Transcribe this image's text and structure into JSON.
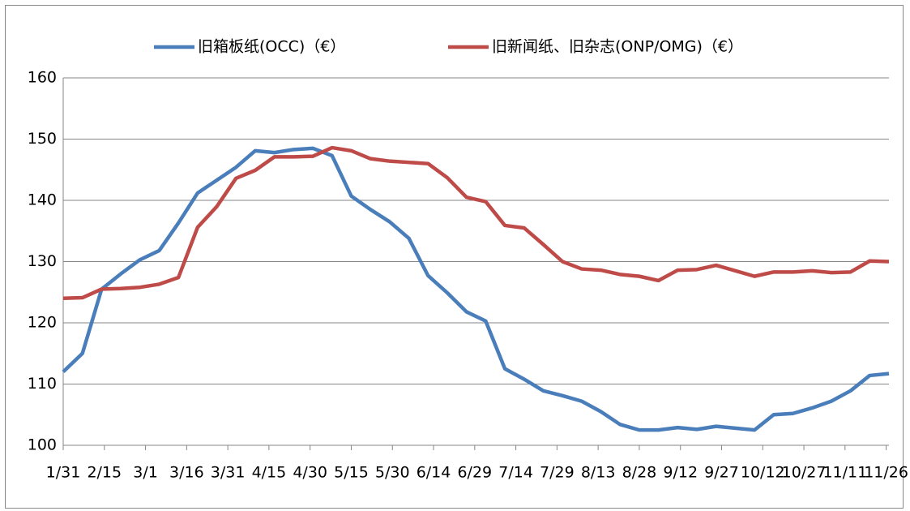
{
  "chart_data": {
    "type": "line",
    "x": [
      0,
      7,
      14,
      21,
      28,
      35,
      42,
      49,
      56,
      63,
      70,
      77,
      84,
      91,
      98,
      105,
      112,
      119,
      126,
      133,
      140,
      147,
      154,
      161,
      168,
      175,
      182,
      189,
      196,
      203,
      210,
      217,
      224,
      231,
      238,
      245,
      252,
      259,
      266,
      273,
      280,
      287,
      294,
      301
    ],
    "xlim": [
      0,
      301
    ],
    "xticks": [
      {
        "value": 0,
        "label": "1/31"
      },
      {
        "value": 15,
        "label": "2/15"
      },
      {
        "value": 30,
        "label": "3/1"
      },
      {
        "value": 45,
        "label": "3/16"
      },
      {
        "value": 60,
        "label": "3/31"
      },
      {
        "value": 75,
        "label": "4/15"
      },
      {
        "value": 90,
        "label": "4/30"
      },
      {
        "value": 105,
        "label": "5/15"
      },
      {
        "value": 120,
        "label": "5/30"
      },
      {
        "value": 135,
        "label": "6/14"
      },
      {
        "value": 150,
        "label": "6/29"
      },
      {
        "value": 165,
        "label": "7/14"
      },
      {
        "value": 180,
        "label": "7/29"
      },
      {
        "value": 195,
        "label": "8/13"
      },
      {
        "value": 210,
        "label": "8/28"
      },
      {
        "value": 225,
        "label": "9/12"
      },
      {
        "value": 240,
        "label": "9/27"
      },
      {
        "value": 255,
        "label": "10/12"
      },
      {
        "value": 270,
        "label": "10/27"
      },
      {
        "value": 285,
        "label": "11/11"
      },
      {
        "value": 300,
        "label": "11/26"
      }
    ],
    "ylim": [
      100,
      160
    ],
    "yticks": [
      100,
      110,
      120,
      130,
      140,
      150,
      160
    ],
    "grid": true,
    "legend": "top",
    "series": [
      {
        "name": "旧箱板纸(OCC)（€）",
        "color": "#4a7ebb",
        "values": [
          112,
          115,
          125.5,
          128,
          130.3,
          131.8,
          136.3,
          141.2,
          143.3,
          145.4,
          148.1,
          147.8,
          148.3,
          148.5,
          147.3,
          140.7,
          138.5,
          136.5,
          133.8,
          127.7,
          124.9,
          121.8,
          120.3,
          112.5,
          110.8,
          108.9,
          108.1,
          107.2,
          105.5,
          103.4,
          102.5,
          102.5,
          102.9,
          102.6,
          103.1,
          102.8,
          102.5,
          105,
          105.2,
          106.1,
          107.2,
          108.9,
          111.4,
          111.7
        ]
      },
      {
        "name": "旧新闻纸、旧杂志(ONP/OMG)（€）",
        "color": "#be4b48",
        "values": [
          124,
          124.1,
          125.5,
          125.6,
          125.8,
          126.3,
          127.4,
          135.6,
          139,
          143.6,
          144.9,
          147.1,
          147.1,
          147.2,
          148.6,
          148.1,
          146.8,
          146.4,
          146.2,
          146,
          143.7,
          140.5,
          139.8,
          135.9,
          135.5,
          132.8,
          130,
          128.8,
          128.6,
          127.9,
          127.6,
          126.9,
          128.6,
          128.7,
          129.4,
          128.5,
          127.6,
          128.3,
          128.3,
          128.5,
          128.2,
          128.3,
          130.1,
          130
        ]
      }
    ]
  }
}
